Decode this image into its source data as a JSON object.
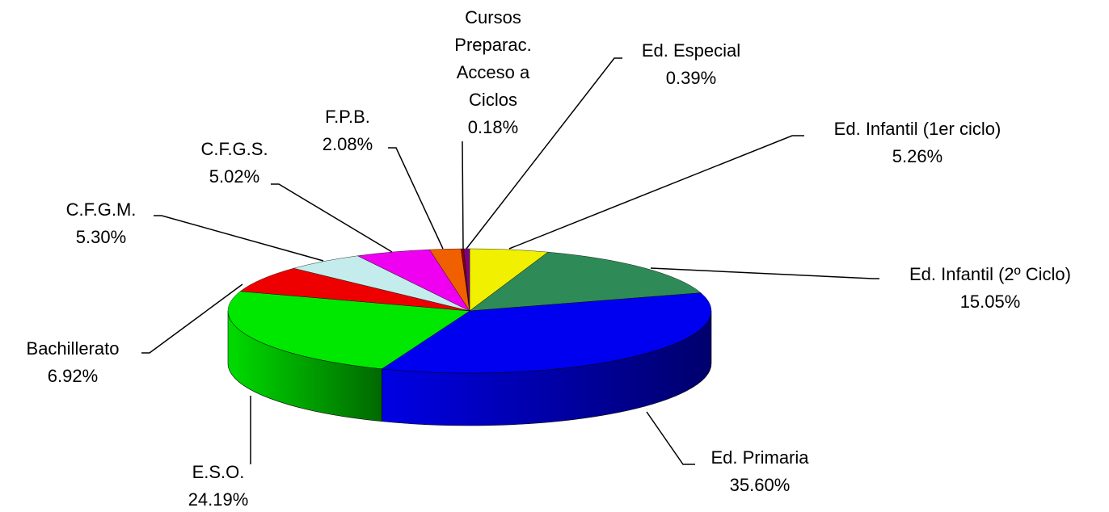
{
  "chart_data": {
    "type": "pie3d",
    "categories": [
      "Ed. Infantil (1er ciclo)",
      "Ed. Infantil (2º Ciclo)",
      "Ed. Primaria",
      "E.S.O.",
      "Bachillerato",
      "C.F.G.M.",
      "C.F.G.S.",
      "F.P.B.",
      "Cursos Preparac. Acceso a Ciclos",
      "Ed. Especial"
    ],
    "values": [
      5.26,
      15.05,
      35.6,
      24.19,
      6.92,
      5.3,
      5.02,
      2.08,
      0.18,
      0.39
    ],
    "value_labels": [
      "5.26%",
      "15.05%",
      "35.60%",
      "24.19%",
      "6.92%",
      "5.30%",
      "5.02%",
      "2.08%",
      "0.18%",
      "0.39%"
    ],
    "colors": [
      "#f0f000",
      "#2e8b57",
      "#0000f0",
      "#00e800",
      "#ee0000",
      "#c4ecec",
      "#f000f0",
      "#f06000",
      "#8b0000",
      "#800080"
    ]
  }
}
